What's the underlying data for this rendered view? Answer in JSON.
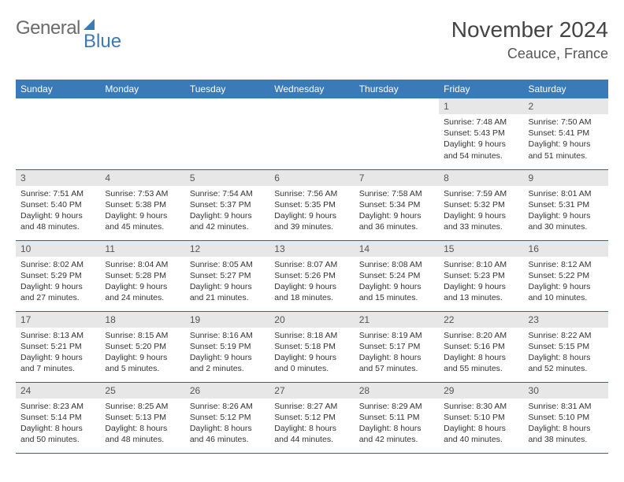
{
  "brand": {
    "part1": "General",
    "part2": "Blue"
  },
  "title": {
    "month": "November 2024",
    "location": "Ceauce, France"
  },
  "colors": {
    "header_bg": "#3b7ab8",
    "header_text": "#ffffff",
    "daynum_bg": "#e7e7e7",
    "row_divider": "#3b5f85",
    "body_text": "#333333",
    "brand_gray": "#6b6b6b",
    "brand_blue": "#3b7ab8"
  },
  "weekdays": [
    "Sunday",
    "Monday",
    "Tuesday",
    "Wednesday",
    "Thursday",
    "Friday",
    "Saturday"
  ],
  "weeks": [
    [
      {
        "n": "",
        "sunrise": "",
        "sunset": "",
        "day": ""
      },
      {
        "n": "",
        "sunrise": "",
        "sunset": "",
        "day": ""
      },
      {
        "n": "",
        "sunrise": "",
        "sunset": "",
        "day": ""
      },
      {
        "n": "",
        "sunrise": "",
        "sunset": "",
        "day": ""
      },
      {
        "n": "",
        "sunrise": "",
        "sunset": "",
        "day": ""
      },
      {
        "n": "1",
        "sunrise": "Sunrise: 7:48 AM",
        "sunset": "Sunset: 5:43 PM",
        "day": "Daylight: 9 hours and 54 minutes."
      },
      {
        "n": "2",
        "sunrise": "Sunrise: 7:50 AM",
        "sunset": "Sunset: 5:41 PM",
        "day": "Daylight: 9 hours and 51 minutes."
      }
    ],
    [
      {
        "n": "3",
        "sunrise": "Sunrise: 7:51 AM",
        "sunset": "Sunset: 5:40 PM",
        "day": "Daylight: 9 hours and 48 minutes."
      },
      {
        "n": "4",
        "sunrise": "Sunrise: 7:53 AM",
        "sunset": "Sunset: 5:38 PM",
        "day": "Daylight: 9 hours and 45 minutes."
      },
      {
        "n": "5",
        "sunrise": "Sunrise: 7:54 AM",
        "sunset": "Sunset: 5:37 PM",
        "day": "Daylight: 9 hours and 42 minutes."
      },
      {
        "n": "6",
        "sunrise": "Sunrise: 7:56 AM",
        "sunset": "Sunset: 5:35 PM",
        "day": "Daylight: 9 hours and 39 minutes."
      },
      {
        "n": "7",
        "sunrise": "Sunrise: 7:58 AM",
        "sunset": "Sunset: 5:34 PM",
        "day": "Daylight: 9 hours and 36 minutes."
      },
      {
        "n": "8",
        "sunrise": "Sunrise: 7:59 AM",
        "sunset": "Sunset: 5:32 PM",
        "day": "Daylight: 9 hours and 33 minutes."
      },
      {
        "n": "9",
        "sunrise": "Sunrise: 8:01 AM",
        "sunset": "Sunset: 5:31 PM",
        "day": "Daylight: 9 hours and 30 minutes."
      }
    ],
    [
      {
        "n": "10",
        "sunrise": "Sunrise: 8:02 AM",
        "sunset": "Sunset: 5:29 PM",
        "day": "Daylight: 9 hours and 27 minutes."
      },
      {
        "n": "11",
        "sunrise": "Sunrise: 8:04 AM",
        "sunset": "Sunset: 5:28 PM",
        "day": "Daylight: 9 hours and 24 minutes."
      },
      {
        "n": "12",
        "sunrise": "Sunrise: 8:05 AM",
        "sunset": "Sunset: 5:27 PM",
        "day": "Daylight: 9 hours and 21 minutes."
      },
      {
        "n": "13",
        "sunrise": "Sunrise: 8:07 AM",
        "sunset": "Sunset: 5:26 PM",
        "day": "Daylight: 9 hours and 18 minutes."
      },
      {
        "n": "14",
        "sunrise": "Sunrise: 8:08 AM",
        "sunset": "Sunset: 5:24 PM",
        "day": "Daylight: 9 hours and 15 minutes."
      },
      {
        "n": "15",
        "sunrise": "Sunrise: 8:10 AM",
        "sunset": "Sunset: 5:23 PM",
        "day": "Daylight: 9 hours and 13 minutes."
      },
      {
        "n": "16",
        "sunrise": "Sunrise: 8:12 AM",
        "sunset": "Sunset: 5:22 PM",
        "day": "Daylight: 9 hours and 10 minutes."
      }
    ],
    [
      {
        "n": "17",
        "sunrise": "Sunrise: 8:13 AM",
        "sunset": "Sunset: 5:21 PM",
        "day": "Daylight: 9 hours and 7 minutes."
      },
      {
        "n": "18",
        "sunrise": "Sunrise: 8:15 AM",
        "sunset": "Sunset: 5:20 PM",
        "day": "Daylight: 9 hours and 5 minutes."
      },
      {
        "n": "19",
        "sunrise": "Sunrise: 8:16 AM",
        "sunset": "Sunset: 5:19 PM",
        "day": "Daylight: 9 hours and 2 minutes."
      },
      {
        "n": "20",
        "sunrise": "Sunrise: 8:18 AM",
        "sunset": "Sunset: 5:18 PM",
        "day": "Daylight: 9 hours and 0 minutes."
      },
      {
        "n": "21",
        "sunrise": "Sunrise: 8:19 AM",
        "sunset": "Sunset: 5:17 PM",
        "day": "Daylight: 8 hours and 57 minutes."
      },
      {
        "n": "22",
        "sunrise": "Sunrise: 8:20 AM",
        "sunset": "Sunset: 5:16 PM",
        "day": "Daylight: 8 hours and 55 minutes."
      },
      {
        "n": "23",
        "sunrise": "Sunrise: 8:22 AM",
        "sunset": "Sunset: 5:15 PM",
        "day": "Daylight: 8 hours and 52 minutes."
      }
    ],
    [
      {
        "n": "24",
        "sunrise": "Sunrise: 8:23 AM",
        "sunset": "Sunset: 5:14 PM",
        "day": "Daylight: 8 hours and 50 minutes."
      },
      {
        "n": "25",
        "sunrise": "Sunrise: 8:25 AM",
        "sunset": "Sunset: 5:13 PM",
        "day": "Daylight: 8 hours and 48 minutes."
      },
      {
        "n": "26",
        "sunrise": "Sunrise: 8:26 AM",
        "sunset": "Sunset: 5:12 PM",
        "day": "Daylight: 8 hours and 46 minutes."
      },
      {
        "n": "27",
        "sunrise": "Sunrise: 8:27 AM",
        "sunset": "Sunset: 5:12 PM",
        "day": "Daylight: 8 hours and 44 minutes."
      },
      {
        "n": "28",
        "sunrise": "Sunrise: 8:29 AM",
        "sunset": "Sunset: 5:11 PM",
        "day": "Daylight: 8 hours and 42 minutes."
      },
      {
        "n": "29",
        "sunrise": "Sunrise: 8:30 AM",
        "sunset": "Sunset: 5:10 PM",
        "day": "Daylight: 8 hours and 40 minutes."
      },
      {
        "n": "30",
        "sunrise": "Sunrise: 8:31 AM",
        "sunset": "Sunset: 5:10 PM",
        "day": "Daylight: 8 hours and 38 minutes."
      }
    ]
  ]
}
